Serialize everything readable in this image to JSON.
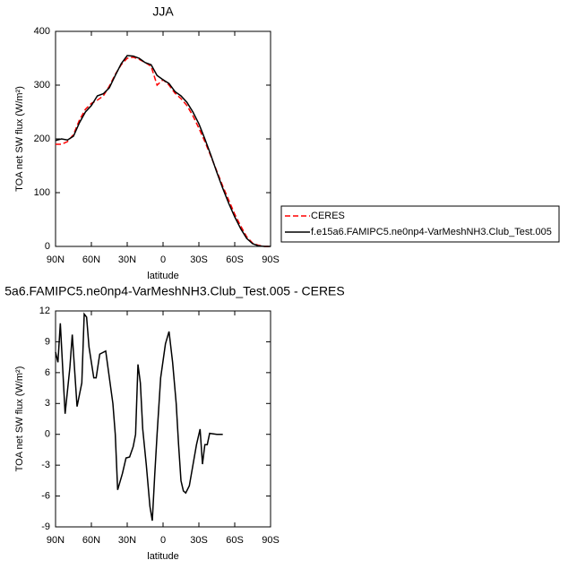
{
  "chart_data": [
    {
      "type": "line",
      "title": "JJA",
      "xlabel": "latitude",
      "ylabel": "TOA net SW flux (W/m²)",
      "x": [
        90,
        85,
        80,
        75,
        70,
        65,
        60,
        55,
        50,
        45,
        40,
        35,
        30,
        25,
        20,
        15,
        10,
        5,
        0,
        -5,
        -10,
        -15,
        -20,
        -25,
        -30,
        -35,
        -40,
        -45,
        -50,
        -55,
        -60,
        -65,
        -70,
        -75,
        -80,
        -85,
        -90
      ],
      "series": [
        {
          "name": "CERES",
          "color": "#ff0000",
          "dash": true,
          "values": [
            190,
            190,
            195,
            208,
            235,
            255,
            266,
            272,
            280,
            298,
            320,
            338,
            350,
            352,
            348,
            342,
            335,
            300,
            310,
            300,
            285,
            275,
            262,
            243,
            220,
            195,
            168,
            140,
            112,
            86,
            60,
            38,
            18,
            6,
            2,
            0,
            0
          ]
        },
        {
          "name": "f.e15a6.FAMIPC5.ne0np4-VarMeshNH3.Club_Test.005",
          "color": "#000000",
          "dash": false,
          "values": [
            197,
            200,
            198,
            205,
            230,
            250,
            262,
            280,
            284,
            295,
            318,
            340,
            355,
            354,
            350,
            342,
            338,
            318,
            310,
            303,
            288,
            280,
            268,
            250,
            228,
            200,
            170,
            138,
            108,
            80,
            55,
            33,
            15,
            5,
            1,
            0,
            0
          ]
        }
      ],
      "xlim": [
        90,
        -90
      ],
      "xticks": [
        {
          "value": 90,
          "label": "90N"
        },
        {
          "value": 60,
          "label": "60N"
        },
        {
          "value": 30,
          "label": "30N"
        },
        0,
        {
          "value": -30,
          "label": "30S"
        },
        {
          "value": -60,
          "label": "60S"
        },
        {
          "value": -90,
          "label": "90S"
        }
      ],
      "ylim": [
        0,
        400
      ],
      "yticks": [
        0,
        100,
        200,
        300,
        400
      ],
      "legend": "right"
    },
    {
      "type": "line",
      "title": "5a6.FAMIPC5.ne0np4-VarMeshNH3.Club_Test.005 - CERES",
      "xlabel": "latitude",
      "ylabel": "TOA net SW flux (W/m²)",
      "x": [
        90,
        88,
        86,
        82,
        78,
        76,
        72,
        68,
        66,
        64,
        62,
        58,
        56,
        53,
        48,
        42,
        40,
        38,
        34,
        31,
        28,
        25,
        23,
        21,
        19,
        17,
        14,
        11,
        9,
        7,
        5,
        2,
        -2,
        -5,
        -8,
        -11,
        -13,
        -15,
        -17,
        -19,
        -22,
        -25,
        -28,
        -31,
        -33,
        -35,
        -37,
        -39,
        -45,
        -50
      ],
      "series": [
        {
          "color": "#000000",
          "values": [
            8,
            7,
            10.8,
            2,
            6.5,
            9.7,
            2.7,
            5,
            11.7,
            11.4,
            8.5,
            5.5,
            5.5,
            7.8,
            8.1,
            3,
            0,
            -5.4,
            -3.8,
            -2.3,
            -2.2,
            -1.2,
            0,
            6.8,
            5,
            0.5,
            -3,
            -7,
            -8.4,
            -4,
            0,
            5.5,
            8.8,
            10,
            7,
            3,
            -1,
            -4.5,
            -5.5,
            -5.7,
            -5,
            -3,
            -1,
            0.5,
            -2.9,
            -1,
            -1,
            0.1,
            0,
            0
          ]
        }
      ],
      "xlim": [
        90,
        -90
      ],
      "xticks": [
        {
          "value": 90,
          "label": "90N"
        },
        {
          "value": 60,
          "label": "60N"
        },
        {
          "value": 30,
          "label": "30N"
        },
        0,
        {
          "value": -30,
          "label": "30S"
        },
        {
          "value": -60,
          "label": "60S"
        },
        {
          "value": -90,
          "label": "90S"
        }
      ],
      "ylim": [
        -9,
        12
      ],
      "yticks": [
        -9,
        -6,
        -3,
        0,
        3,
        6,
        9,
        12
      ]
    }
  ]
}
